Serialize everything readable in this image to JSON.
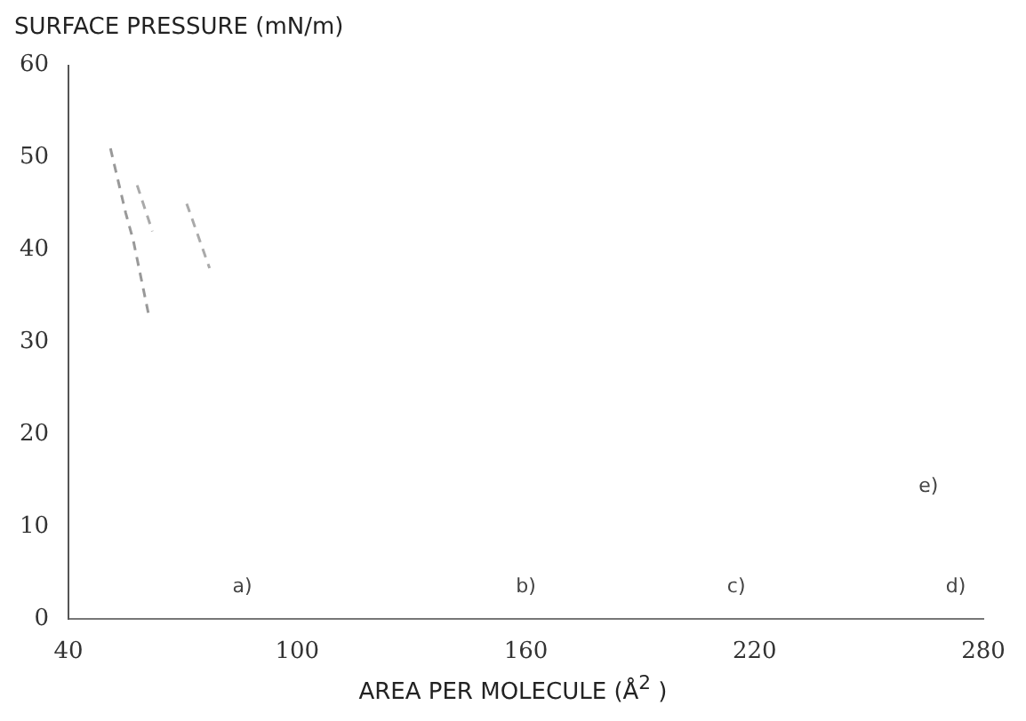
{
  "chart_data": {
    "type": "line",
    "ylabel": "SURFACE PRESSURE (mN/m)",
    "xlabel": "AREA PER MOLECULE (Å$^{2}$ )",
    "xlim": [
      40,
      280
    ],
    "xticks": [
      40,
      100,
      160,
      220,
      280
    ],
    "ylim": [
      0,
      60
    ],
    "yticks": [
      0,
      10,
      20,
      30,
      40,
      50,
      60
    ],
    "grid": false,
    "legend": false,
    "marker": "none",
    "line_style": "dashed",
    "series": [
      {
        "color": "#999999",
        "x": [
          51,
          55,
          57,
          61
        ],
        "values": [
          51,
          44,
          41,
          33
        ]
      },
      {
        "color": "#aaaaaa",
        "x": [
          58,
          62
        ],
        "values": [
          47,
          42
        ]
      },
      {
        "color": "#aaaaaa",
        "x": [
          71,
          77
        ],
        "values": [
          45,
          38
        ]
      }
    ],
    "annotations": [
      "a)",
      "b)",
      "c)",
      "d)",
      "e)"
    ]
  }
}
